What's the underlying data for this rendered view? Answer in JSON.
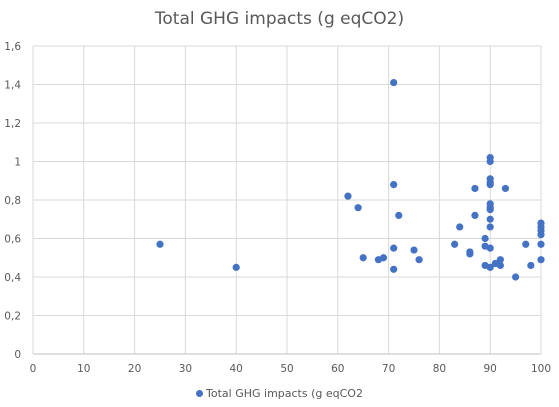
{
  "chart_data": {
    "type": "scatter",
    "title": "Total GHG impacts (g eqCO2)",
    "xlabel": "",
    "ylabel": "",
    "xlim": [
      0,
      100
    ],
    "ylim": [
      0,
      1.6
    ],
    "x_ticks": [
      "0",
      "10",
      "20",
      "30",
      "40",
      "50",
      "60",
      "70",
      "80",
      "90",
      "100"
    ],
    "y_ticks": [
      "0",
      "0,2",
      "0,4",
      "0,6",
      "0,8",
      "1",
      "1,2",
      "1,4",
      "1,6"
    ],
    "grid": true,
    "legend_position": "bottom",
    "series": [
      {
        "name": "Total GHG impacts (g eqCO2",
        "color": "#4472C4",
        "points": [
          [
            25,
            0.57
          ],
          [
            40,
            0.45
          ],
          [
            62,
            0.82
          ],
          [
            64,
            0.76
          ],
          [
            65,
            0.5
          ],
          [
            68,
            0.49
          ],
          [
            69,
            0.5
          ],
          [
            71,
            1.41
          ],
          [
            71,
            0.88
          ],
          [
            71,
            0.55
          ],
          [
            71,
            0.44
          ],
          [
            72,
            0.72
          ],
          [
            75,
            0.54
          ],
          [
            76,
            0.49
          ],
          [
            83,
            0.57
          ],
          [
            84,
            0.66
          ],
          [
            86,
            0.52
          ],
          [
            86,
            0.53
          ],
          [
            87,
            0.86
          ],
          [
            87,
            0.72
          ],
          [
            89,
            0.6
          ],
          [
            89,
            0.56
          ],
          [
            89,
            0.46
          ],
          [
            90,
            1.02
          ],
          [
            90,
            1.0
          ],
          [
            90,
            0.91
          ],
          [
            90,
            0.89
          ],
          [
            90,
            0.88
          ],
          [
            90,
            0.78
          ],
          [
            90,
            0.76
          ],
          [
            90,
            0.75
          ],
          [
            90,
            0.7
          ],
          [
            90,
            0.66
          ],
          [
            90,
            0.55
          ],
          [
            90,
            0.45
          ],
          [
            91,
            0.47
          ],
          [
            92,
            0.49
          ],
          [
            92,
            0.46
          ],
          [
            93,
            0.86
          ],
          [
            95,
            0.4
          ],
          [
            97,
            0.57
          ],
          [
            98,
            0.46
          ],
          [
            100,
            0.68
          ],
          [
            100,
            0.66
          ],
          [
            100,
            0.64
          ],
          [
            100,
            0.62
          ],
          [
            100,
            0.57
          ],
          [
            100,
            0.49
          ]
        ]
      }
    ]
  },
  "legend": {
    "label": "Total GHG impacts (g eqCO2"
  }
}
